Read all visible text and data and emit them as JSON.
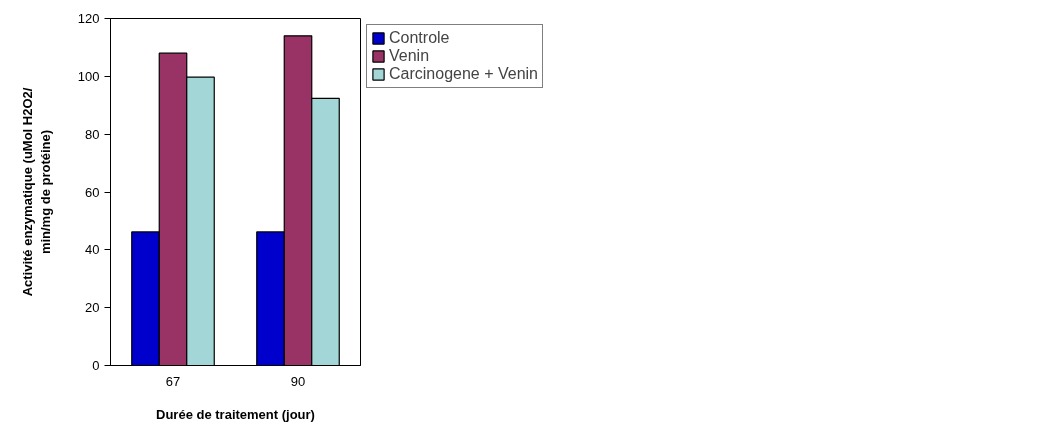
{
  "chart_data": {
    "type": "bar",
    "xlabel": "Durée de traitement (jour)",
    "ylabel": "Activité enzymatique (uMol H2O2/ min/mg de protéine)",
    "categories": [
      "67",
      "90"
    ],
    "series": [
      {
        "name": "Controle",
        "color": "#0000cc",
        "values": [
          46.2,
          46.2
        ]
      },
      {
        "name": "Venin",
        "color": "#993366",
        "values": [
          108.0,
          114.0
        ]
      },
      {
        "name": "Carcinogene + Venin",
        "color": "#a3d6d6",
        "values": [
          99.7,
          92.4
        ]
      }
    ],
    "ylim": [
      0,
      120
    ],
    "yticks": [
      0,
      20,
      40,
      60,
      80,
      100,
      120
    ],
    "grid": false,
    "legend": "right"
  }
}
